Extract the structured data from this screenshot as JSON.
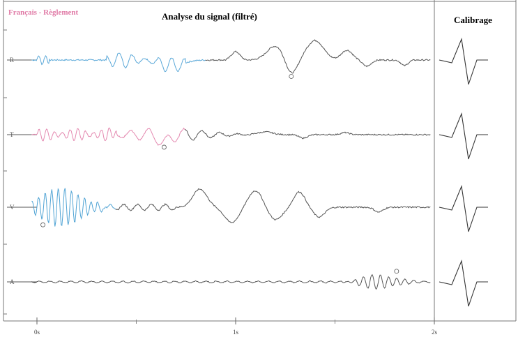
{
  "header": {
    "lang_fr": "Français",
    "sep": "-",
    "lang_reg": "Règlement",
    "title": "Analyse du signal (filtré)",
    "calibration": "Calibrage"
  },
  "colors": {
    "R": "#5aa8d8",
    "T": "#e489b0",
    "V": "#4fa3d4",
    "A": "#444444",
    "trace_rest": "#555555",
    "frame": "#777777"
  },
  "chart_data": {
    "type": "line",
    "title": "Analyse du signal (filtré)",
    "xlabel": "",
    "ylabel": "",
    "x_ticks": [
      "0s",
      "1s",
      "2s"
    ],
    "xlim": [
      0,
      2
    ],
    "series": [
      {
        "name": "R",
        "marker_t": 1.28
      },
      {
        "name": "T",
        "marker_t": 0.64
      },
      {
        "name": "V",
        "marker_t": 0.03
      },
      {
        "name": "A",
        "marker_t": 1.81
      }
    ],
    "calibration_label": "Calibrage"
  }
}
